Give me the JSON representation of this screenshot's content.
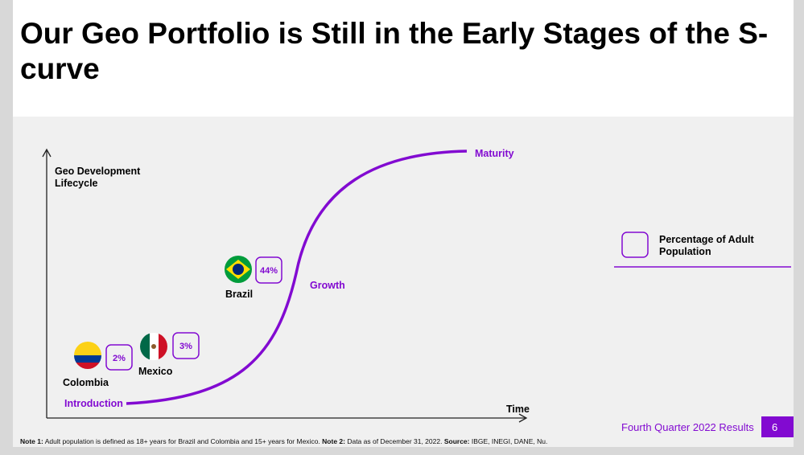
{
  "title": "Our Geo Portfolio is Still in the Early Stages of the S-curve",
  "y_axis_label": [
    "Geo Development",
    "Lifecycle"
  ],
  "x_axis_label": "Time",
  "stages": [
    "Introduction",
    "Growth",
    "Maturity"
  ],
  "countries": [
    {
      "name": "Colombia",
      "percentage": "2%"
    },
    {
      "name": "Mexico",
      "percentage": "3%"
    },
    {
      "name": "Brazil",
      "percentage": "44%"
    }
  ],
  "legend": [
    "Percentage of Adult",
    "Population"
  ],
  "note": [
    {
      "bold": "Note 1:",
      "text": " Adult population is defined as 18+ years for Brazil and Colombia and 15+ years for Mexico. "
    },
    {
      "bold": "Note 2:",
      "text": " Data as of December 31, 2022. "
    },
    {
      "bold": "Source:",
      "text": " IBGE, INEGI, DANE, Nu."
    }
  ],
  "footer": "Fourth Quarter 2022 Results",
  "page_number": "6"
}
